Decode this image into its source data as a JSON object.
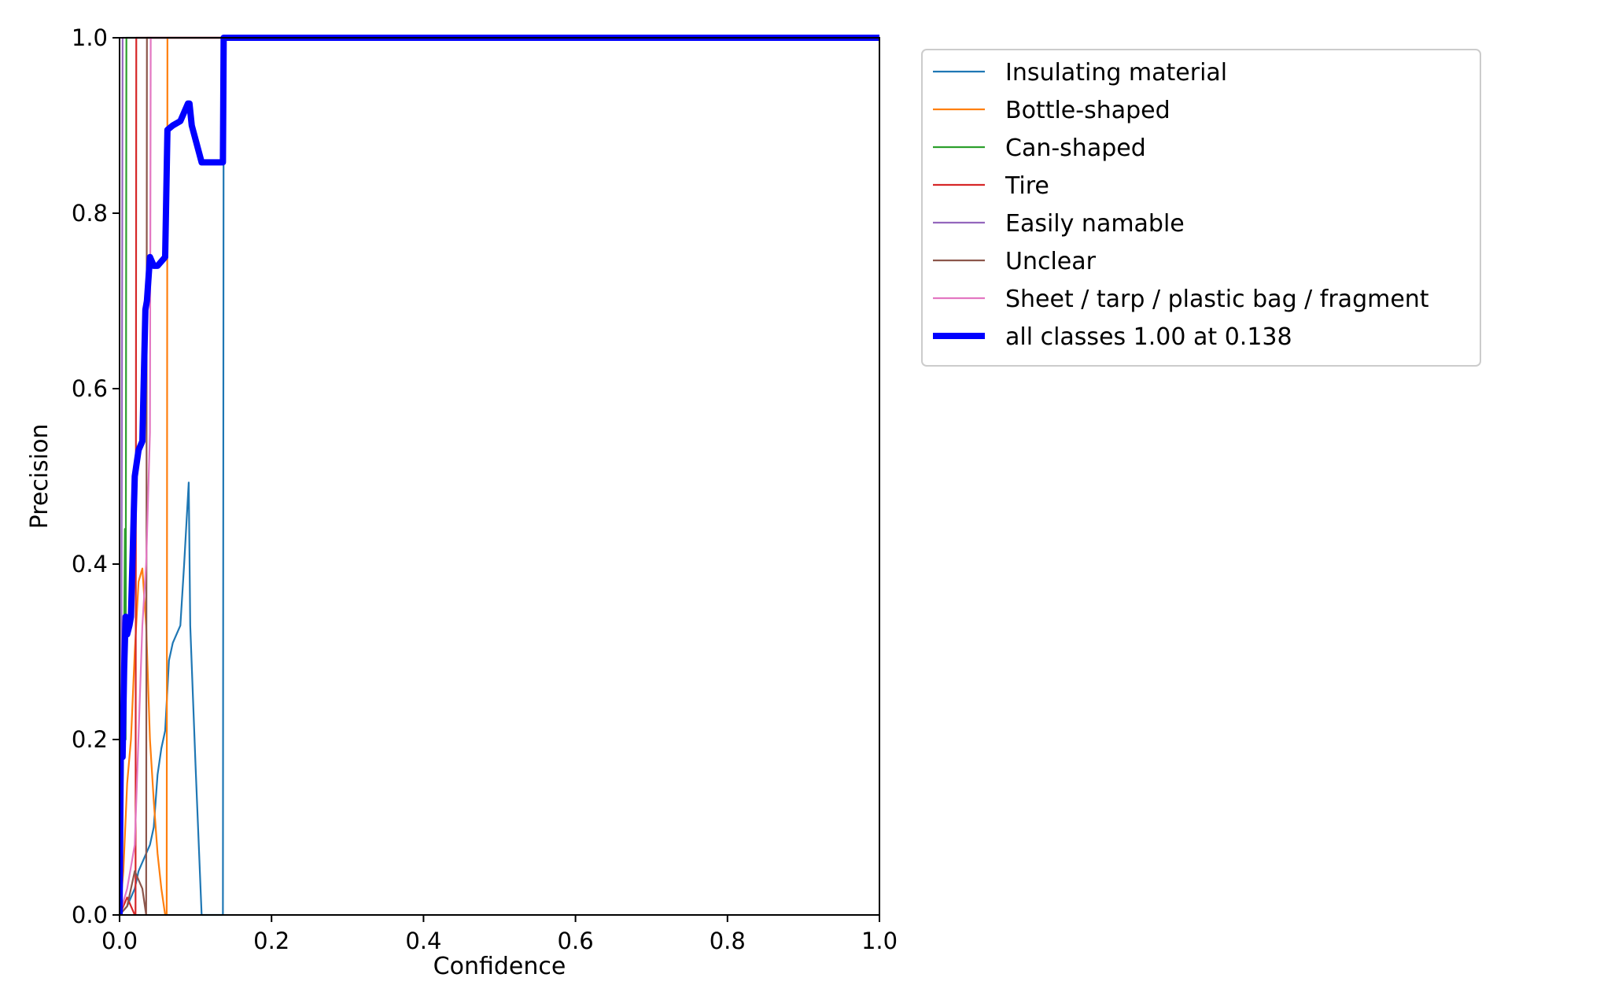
{
  "chart_data": {
    "type": "line",
    "title": "",
    "xlabel": "Confidence",
    "ylabel": "Precision",
    "xlim": [
      0,
      1
    ],
    "ylim": [
      0,
      1
    ],
    "xticks": [
      "0.0",
      "0.2",
      "0.4",
      "0.6",
      "0.8",
      "1.0"
    ],
    "yticks": [
      "0.0",
      "0.2",
      "0.4",
      "0.6",
      "0.8",
      "1.0"
    ],
    "grid": false,
    "legend_position": "outside right, top",
    "series": [
      {
        "name": "Insulating material",
        "color": "#1f77b4",
        "width": "thin",
        "points": [
          [
            0.0,
            0.0
          ],
          [
            0.005,
            0.005
          ],
          [
            0.01,
            0.01
          ],
          [
            0.015,
            0.02
          ],
          [
            0.02,
            0.03
          ],
          [
            0.025,
            0.05
          ],
          [
            0.03,
            0.06
          ],
          [
            0.035,
            0.07
          ],
          [
            0.04,
            0.08
          ],
          [
            0.045,
            0.1
          ],
          [
            0.05,
            0.16
          ],
          [
            0.055,
            0.19
          ],
          [
            0.06,
            0.21
          ],
          [
            0.065,
            0.29
          ],
          [
            0.07,
            0.31
          ],
          [
            0.08,
            0.33
          ],
          [
            0.085,
            0.4
          ],
          [
            0.091,
            0.493
          ],
          [
            0.093,
            0.33
          ],
          [
            0.1,
            0.17
          ],
          [
            0.108,
            0.0
          ],
          [
            0.136,
            0.0
          ],
          [
            0.137,
            1.0
          ],
          [
            1.0,
            1.0
          ]
        ]
      },
      {
        "name": "Bottle-shaped",
        "color": "#ff7f0e",
        "width": "thin",
        "points": [
          [
            0.0,
            0.0
          ],
          [
            0.005,
            0.05
          ],
          [
            0.01,
            0.15
          ],
          [
            0.015,
            0.2
          ],
          [
            0.02,
            0.3
          ],
          [
            0.025,
            0.38
          ],
          [
            0.03,
            0.395
          ],
          [
            0.035,
            0.33
          ],
          [
            0.04,
            0.2
          ],
          [
            0.045,
            0.13
          ],
          [
            0.05,
            0.07
          ],
          [
            0.055,
            0.03
          ],
          [
            0.06,
            0.0
          ],
          [
            0.062,
            0.0
          ],
          [
            0.063,
            1.0
          ],
          [
            1.0,
            1.0
          ]
        ]
      },
      {
        "name": "Can-shaped",
        "color": "#2ca02c",
        "width": "thin",
        "points": [
          [
            0.0,
            0.0
          ],
          [
            0.003,
            0.1
          ],
          [
            0.005,
            0.2
          ],
          [
            0.007,
            0.44
          ],
          [
            0.008,
            0.2
          ],
          [
            0.009,
            1.0
          ],
          [
            0.011,
            1.0
          ],
          [
            1.0,
            1.0
          ]
        ]
      },
      {
        "name": "Tire",
        "color": "#d62728",
        "width": "thin",
        "points": [
          [
            0.0,
            0.0
          ],
          [
            0.01,
            0.02
          ],
          [
            0.02,
            0.0
          ],
          [
            0.021,
            0.0
          ],
          [
            0.022,
            1.0
          ],
          [
            1.0,
            1.0
          ]
        ]
      },
      {
        "name": "Easily namable",
        "color": "#9467bd",
        "width": "thin",
        "points": [
          [
            0.0,
            0.0
          ],
          [
            0.002,
            0.1
          ],
          [
            0.004,
            1.0
          ],
          [
            1.0,
            1.0
          ]
        ]
      },
      {
        "name": "Unclear",
        "color": "#8c564b",
        "width": "thin",
        "points": [
          [
            0.0,
            0.0
          ],
          [
            0.01,
            0.01
          ],
          [
            0.02,
            0.05
          ],
          [
            0.03,
            0.03
          ],
          [
            0.035,
            0.0
          ],
          [
            0.036,
            1.0
          ],
          [
            1.0,
            1.0
          ]
        ]
      },
      {
        "name": "Sheet / tarp / plastic bag / fragment",
        "color": "#e377c2",
        "width": "thin",
        "points": [
          [
            0.0,
            0.0
          ],
          [
            0.01,
            0.03
          ],
          [
            0.02,
            0.08
          ],
          [
            0.03,
            0.33
          ],
          [
            0.035,
            0.4
          ],
          [
            0.04,
            0.55
          ],
          [
            0.041,
            1.0
          ],
          [
            1.0,
            1.0
          ]
        ]
      },
      {
        "name": "all classes 1.00 at 0.138",
        "color": "#0000ff",
        "width": "thick",
        "points": [
          [
            0.0,
            0.0
          ],
          [
            0.002,
            0.23
          ],
          [
            0.004,
            0.18
          ],
          [
            0.006,
            0.28
          ],
          [
            0.008,
            0.34
          ],
          [
            0.01,
            0.32
          ],
          [
            0.013,
            0.33
          ],
          [
            0.015,
            0.34
          ],
          [
            0.02,
            0.5
          ],
          [
            0.025,
            0.53
          ],
          [
            0.03,
            0.54
          ],
          [
            0.034,
            0.69
          ],
          [
            0.036,
            0.7
          ],
          [
            0.04,
            0.75
          ],
          [
            0.045,
            0.74
          ],
          [
            0.05,
            0.74
          ],
          [
            0.06,
            0.75
          ],
          [
            0.063,
            0.895
          ],
          [
            0.07,
            0.9
          ],
          [
            0.08,
            0.905
          ],
          [
            0.09,
            0.925
          ],
          [
            0.092,
            0.925
          ],
          [
            0.095,
            0.9
          ],
          [
            0.108,
            0.858
          ],
          [
            0.136,
            0.858
          ],
          [
            0.137,
            1.0
          ],
          [
            1.0,
            1.0
          ]
        ]
      }
    ]
  }
}
